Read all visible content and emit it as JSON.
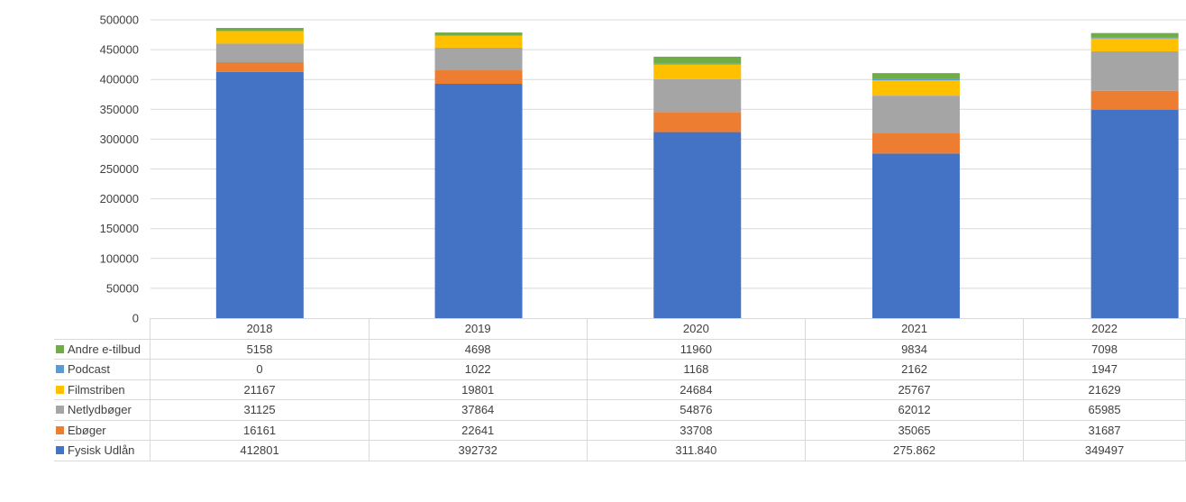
{
  "chart_data": {
    "type": "bar",
    "stacked": true,
    "categories": [
      "2018",
      "2019",
      "2020",
      "2021",
      "2022"
    ],
    "ylim": [
      0,
      500000
    ],
    "yticks": [
      "0",
      "50000",
      "100000",
      "150000",
      "200000",
      "250000",
      "300000",
      "350000",
      "400000",
      "450000",
      "500000"
    ],
    "grid": true,
    "legend": "data-table",
    "series": [
      {
        "name": "Fysisk Udlån",
        "color": "#4472C4",
        "values": [
          412801,
          392732,
          311840,
          275862,
          349497
        ],
        "labels": [
          "412801",
          "392732",
          "311.840",
          "275.862",
          "349497"
        ]
      },
      {
        "name": "Ebøger",
        "color": "#ED7D31",
        "values": [
          16161,
          22641,
          33708,
          35065,
          31687
        ],
        "labels": [
          "16161",
          "22641",
          "33708",
          "35065",
          "31687"
        ]
      },
      {
        "name": "Netlydbøger",
        "color": "#A5A5A5",
        "values": [
          31125,
          37864,
          54876,
          62012,
          65985
        ],
        "labels": [
          "31125",
          "37864",
          "54876",
          "62012",
          "65985"
        ]
      },
      {
        "name": "Filmstriben",
        "color": "#FFC000",
        "values": [
          21167,
          19801,
          24684,
          25767,
          21629
        ],
        "labels": [
          "21167",
          "19801",
          "24684",
          "25767",
          "21629"
        ]
      },
      {
        "name": "Podcast",
        "color": "#5B9BD5",
        "values": [
          0,
          1022,
          1168,
          2162,
          1947
        ],
        "labels": [
          "0",
          "1022",
          "1168",
          "2162",
          "1947"
        ]
      },
      {
        "name": "Andre e-tilbud",
        "color": "#70AD47",
        "values": [
          5158,
          4698,
          11960,
          9834,
          7098
        ],
        "labels": [
          "5158",
          "4698",
          "11960",
          "9834",
          "7098"
        ]
      }
    ]
  }
}
